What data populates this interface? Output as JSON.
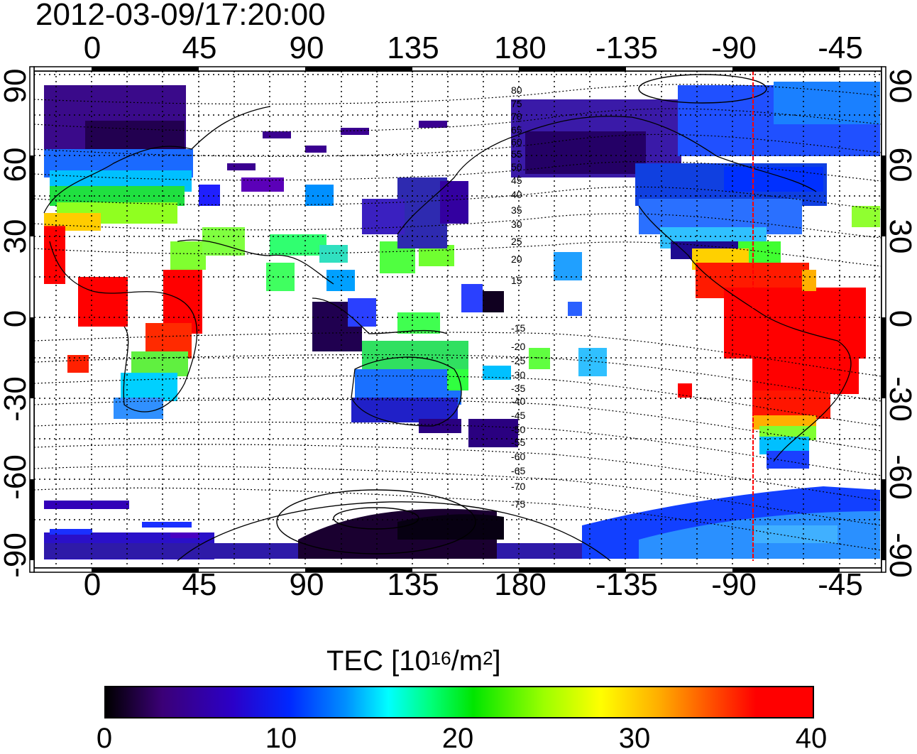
{
  "title": "2012-03-09/17:20:00",
  "axes": {
    "top_ticks": [
      "0",
      "45",
      "90",
      "135",
      "180",
      "-135",
      "-90",
      "-45"
    ],
    "bottom_ticks": [
      "0",
      "45",
      "90",
      "135",
      "180",
      "-135",
      "-90",
      "-45"
    ],
    "left_ticks": [
      "90",
      "60",
      "30",
      "0",
      "-30",
      "-60",
      "-90"
    ],
    "right_ticks": [
      "90",
      "60",
      "30",
      "0",
      "-30",
      "-60",
      "-90"
    ]
  },
  "contour_labels": [
    "80",
    "75",
    "70",
    "65",
    "60",
    "55",
    "50",
    "45",
    "40",
    "35",
    "30",
    "25",
    "20",
    "15",
    "-15",
    "-20",
    "-25",
    "-30",
    "-35",
    "-40",
    "-45",
    "-50",
    "-55",
    "-60",
    "-65",
    "-70",
    "-75"
  ],
  "colorbar": {
    "title_main": "TEC  [10",
    "title_sup1": "16",
    "title_mid": "/m",
    "title_sup2": "2",
    "title_end": "]",
    "ticks": [
      "0",
      "10",
      "20",
      "30",
      "40"
    ],
    "range": [
      0,
      40
    ]
  },
  "colors": {
    "terminator_line": "#ff0000",
    "coast": "#000000"
  },
  "terminator_longitude": -80
}
